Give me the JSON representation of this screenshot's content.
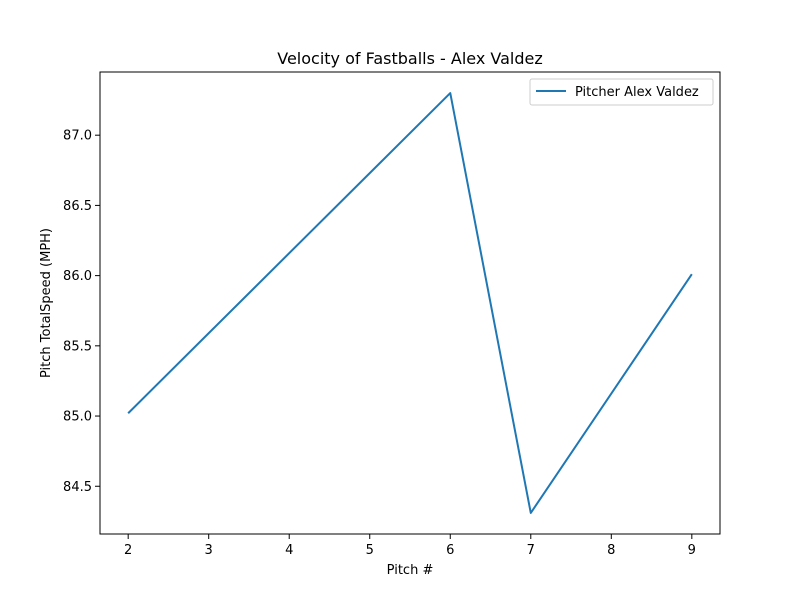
{
  "chart_data": {
    "type": "line",
    "title": "Velocity of Fastballs - Alex Valdez",
    "xlabel": "Pitch #",
    "ylabel": "Pitch TotalSpeed (MPH)",
    "xlim": [
      1.65,
      9.35
    ],
    "ylim": [
      84.16,
      87.45
    ],
    "xticks": [
      2,
      3,
      4,
      5,
      6,
      7,
      8,
      9
    ],
    "xtick_labels": [
      "2",
      "3",
      "4",
      "5",
      "6",
      "7",
      "8",
      "9"
    ],
    "yticks": [
      84.5,
      85.0,
      85.5,
      86.0,
      86.5,
      87.0
    ],
    "ytick_labels": [
      "84.5",
      "85.0",
      "85.5",
      "86.0",
      "86.5",
      "87.0"
    ],
    "grid": false,
    "legend_position": "top-right",
    "series": [
      {
        "name": "Pitcher Alex Valdez",
        "color": "#1f77b4",
        "x": [
          2,
          6,
          7,
          9
        ],
        "y": [
          85.02,
          87.3,
          84.31,
          86.01
        ]
      }
    ]
  }
}
